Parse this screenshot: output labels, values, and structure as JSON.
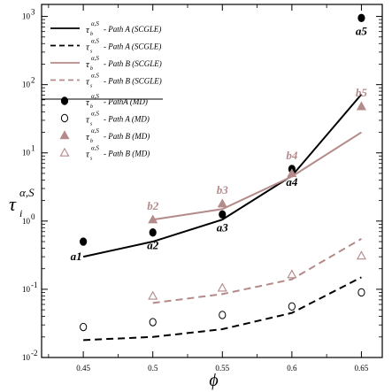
{
  "chart_data": {
    "type": "line",
    "xlabel": "ϕ",
    "ylabel": "τ",
    "ylabel_sub": "i",
    "ylabel_sup": "α,S",
    "xlim": [
      0.42,
      0.665
    ],
    "ylim": [
      0.01,
      1500
    ],
    "yscale": "log",
    "x_ticks": [
      0.45,
      0.5,
      0.55,
      0.6,
      0.65
    ],
    "x_tick_labels": [
      "0.45",
      "0.5",
      "0.55",
      "0.6",
      "0.65"
    ],
    "y_ticks": [
      0.01,
      0.1,
      1,
      10,
      100,
      1000
    ],
    "y_tick_bases": [
      "10",
      "10",
      "10",
      "10",
      "10",
      "10"
    ],
    "y_tick_exps": [
      "-2",
      "-1",
      "0",
      "1",
      "2",
      "3"
    ],
    "grid": false,
    "legend_position": "top-left",
    "colors": {
      "black": "#000000",
      "mauve": "#b48a8a"
    },
    "series": [
      {
        "name": "Path A (SCGLE)",
        "symbol": "b",
        "kind": "line",
        "dash": "solid",
        "color": "#000000",
        "x": [
          0.45,
          0.5,
          0.55,
          0.6,
          0.65
        ],
        "y": [
          0.3,
          0.5,
          1.05,
          4.6,
          72
        ]
      },
      {
        "name": "Path A (SCGLE)",
        "symbol": "s",
        "kind": "line",
        "dash": "dashed",
        "color": "#000000",
        "x": [
          0.45,
          0.5,
          0.55,
          0.6,
          0.65
        ],
        "y": [
          0.018,
          0.02,
          0.026,
          0.045,
          0.15
        ]
      },
      {
        "name": "Path B (SCGLE)",
        "symbol": "b",
        "kind": "line",
        "dash": "solid",
        "color": "#b48a8a",
        "x": [
          0.5,
          0.55,
          0.6,
          0.65
        ],
        "y": [
          1.05,
          1.5,
          4.5,
          20
        ]
      },
      {
        "name": "Path B (SCGLE)",
        "symbol": "s",
        "kind": "line",
        "dash": "dashed",
        "color": "#b48a8a",
        "x": [
          0.5,
          0.55,
          0.6,
          0.65
        ],
        "y": [
          0.063,
          0.085,
          0.14,
          0.55
        ]
      },
      {
        "name": "PathA (MD)",
        "symbol": "b",
        "kind": "marker",
        "marker": "circle-filled",
        "color": "#000000",
        "x": [
          0.45,
          0.5,
          0.55,
          0.6,
          0.65
        ],
        "y": [
          0.5,
          0.68,
          1.25,
          5.8,
          950
        ]
      },
      {
        "name": "Path A (MD)",
        "symbol": "s",
        "kind": "marker",
        "marker": "circle-open",
        "color": "#000000",
        "x": [
          0.45,
          0.5,
          0.55,
          0.6,
          0.65
        ],
        "y": [
          0.028,
          0.033,
          0.042,
          0.056,
          0.09
        ]
      },
      {
        "name": "Path B (MD)",
        "symbol": "b",
        "kind": "marker",
        "marker": "triangle-filled",
        "color": "#b48a8a",
        "x": [
          0.5,
          0.55,
          0.6,
          0.65
        ],
        "y": [
          1.05,
          1.8,
          5.0,
          48
        ]
      },
      {
        "name": "Path B (MD)",
        "symbol": "s",
        "kind": "marker",
        "marker": "triangle-open",
        "color": "#b48a8a",
        "x": [
          0.5,
          0.55,
          0.6,
          0.65
        ],
        "y": [
          0.08,
          0.105,
          0.165,
          0.31
        ]
      }
    ],
    "annotations": [
      {
        "text": "a1",
        "x": 0.45,
        "y": 0.5,
        "color": "#000000",
        "place": "below-left"
      },
      {
        "text": "a2",
        "x": 0.5,
        "y": 0.68,
        "color": "#000000",
        "place": "below"
      },
      {
        "text": "a3",
        "x": 0.55,
        "y": 1.25,
        "color": "#000000",
        "place": "below"
      },
      {
        "text": "a4",
        "x": 0.6,
        "y": 5.8,
        "color": "#000000",
        "place": "below"
      },
      {
        "text": "a5",
        "x": 0.65,
        "y": 950,
        "color": "#000000",
        "place": "below"
      },
      {
        "text": "b2",
        "x": 0.5,
        "y": 1.05,
        "color": "#b48a8a",
        "place": "above"
      },
      {
        "text": "b3",
        "x": 0.55,
        "y": 1.8,
        "color": "#b48a8a",
        "place": "above"
      },
      {
        "text": "b4",
        "x": 0.6,
        "y": 5.8,
        "color": "#b48a8a",
        "place": "above"
      },
      {
        "text": "b5",
        "x": 0.65,
        "y": 48,
        "color": "#b48a8a",
        "place": "above"
      }
    ]
  }
}
